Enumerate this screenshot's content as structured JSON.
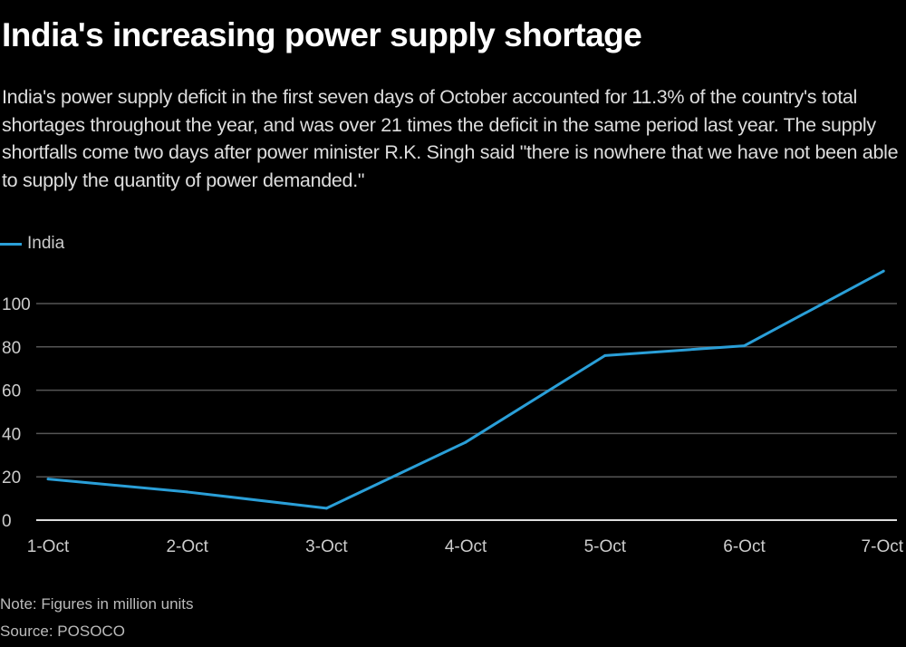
{
  "title": "India's increasing power supply shortage",
  "subtitle": "India's power supply deficit in the first seven days of October accounted for 11.3% of the country's total shortages throughout the year, and was over 21 times the deficit in the same period last year. The supply shortfalls come two days after power minister R.K. Singh said \"there is nowhere that we have not been able to supply the quantity of power demanded.\"",
  "note": "Note: Figures in million units",
  "source": "Source: POSOCO",
  "chart_data": {
    "type": "line",
    "categories": [
      "1-Oct",
      "2-Oct",
      "3-Oct",
      "4-Oct",
      "5-Oct",
      "6-Oct",
      "7-Oct"
    ],
    "series": [
      {
        "name": "India",
        "values": [
          19,
          13,
          5.5,
          36,
          76,
          80.5,
          115
        ],
        "color": "#2a9fd8"
      }
    ],
    "yticks": [
      0,
      20,
      40,
      60,
      80,
      100
    ],
    "ylim": [
      0,
      115
    ],
    "grid": true,
    "legend": "top-left"
  }
}
